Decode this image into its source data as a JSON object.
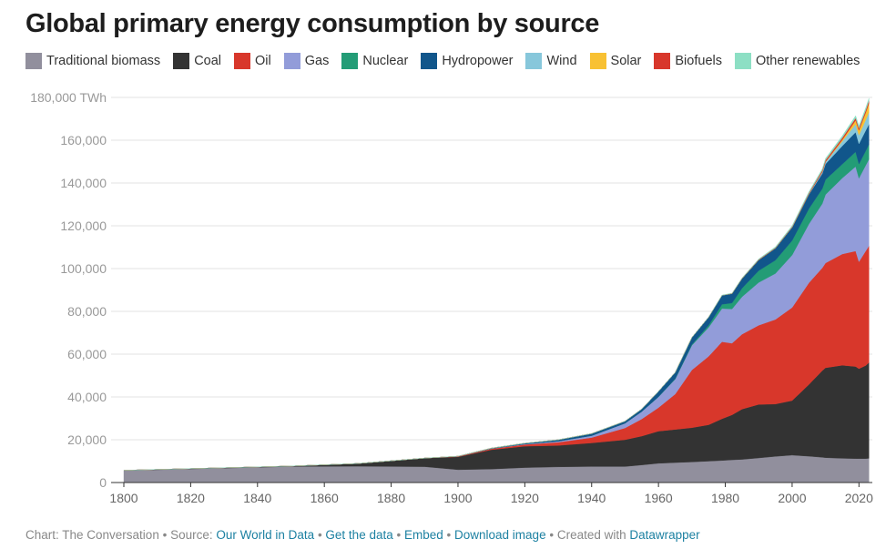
{
  "title": "Global primary energy consumption by source",
  "legend": [
    {
      "label": "Traditional biomass",
      "color": "#918f9d"
    },
    {
      "label": "Coal",
      "color": "#333333"
    },
    {
      "label": "Oil",
      "color": "#d8372b"
    },
    {
      "label": "Gas",
      "color": "#929cd9"
    },
    {
      "label": "Nuclear",
      "color": "#239c76"
    },
    {
      "label": "Hydropower",
      "color": "#11568b"
    },
    {
      "label": "Wind",
      "color": "#87c7db"
    },
    {
      "label": "Solar",
      "color": "#f8c133"
    },
    {
      "label": "Biofuels",
      "color": "#d8372b"
    },
    {
      "label": "Other renewables",
      "color": "#8ddfc4"
    }
  ],
  "chart_data": {
    "type": "area",
    "stacked": true,
    "title": "Global primary energy consumption by source",
    "ylabel_unit": "TWh",
    "ylim": [
      0,
      180000
    ],
    "xlim": [
      1800,
      2024
    ],
    "y_ticks": [
      0,
      20000,
      40000,
      60000,
      80000,
      100000,
      120000,
      140000,
      160000,
      180000
    ],
    "y_tick_labels": [
      "0",
      "20,000",
      "40,000",
      "60,000",
      "80,000",
      "100,000",
      "120,000",
      "140,000",
      "160,000",
      "180,000 TWh"
    ],
    "x_ticks": [
      1800,
      1820,
      1840,
      1860,
      1880,
      1900,
      1920,
      1940,
      1960,
      1980,
      2000,
      2020
    ],
    "x_tick_labels": [
      "1800",
      "1820",
      "1840",
      "1860",
      "1880",
      "1900",
      "1920",
      "1940",
      "1960",
      "1980",
      "2000",
      "2020"
    ],
    "x": [
      1800,
      1850,
      1870,
      1890,
      1900,
      1910,
      1920,
      1930,
      1940,
      1950,
      1955,
      1960,
      1965,
      1970,
      1975,
      1979,
      1982,
      1985,
      1990,
      1995,
      2000,
      2005,
      2009,
      2010,
      2015,
      2019,
      2020,
      2022,
      2023
    ],
    "series": [
      {
        "name": "Traditional biomass",
        "color": "#918f9d",
        "values": [
          5600,
          7500,
          7600,
          7400,
          6000,
          6300,
          7000,
          7300,
          7500,
          7500,
          8200,
          9000,
          9300,
          9600,
          10000,
          10300,
          10600,
          10800,
          11500,
          12200,
          12800,
          12300,
          11800,
          11600,
          11300,
          11200,
          11200,
          11200,
          11300
        ]
      },
      {
        "name": "Coal",
        "color": "#333333",
        "values": [
          100,
          200,
          1300,
          4000,
          6000,
          9000,
          10000,
          10000,
          11000,
          12500,
          13500,
          15000,
          15500,
          16000,
          17000,
          19500,
          21000,
          23500,
          25000,
          24500,
          25500,
          33500,
          40500,
          42000,
          43500,
          43000,
          42000,
          43500,
          44800
        ]
      },
      {
        "name": "Oil",
        "color": "#d8372b",
        "values": [
          0,
          0,
          0,
          0,
          200,
          500,
          800,
          1500,
          2500,
          5500,
          8000,
          11000,
          16500,
          27000,
          32000,
          36000,
          33500,
          35000,
          37000,
          39500,
          43500,
          47500,
          48000,
          49000,
          52000,
          54000,
          50000,
          53500,
          54500
        ]
      },
      {
        "name": "Gas",
        "color": "#929cd9",
        "values": [
          0,
          0,
          0,
          0,
          50,
          100,
          200,
          500,
          900,
          2200,
          3500,
          5000,
          7000,
          11500,
          13500,
          15500,
          16000,
          17500,
          20000,
          21500,
          24500,
          27500,
          30000,
          32000,
          35500,
          39500,
          39000,
          40000,
          40500
        ]
      },
      {
        "name": "Nuclear",
        "color": "#239c76",
        "values": [
          0,
          0,
          0,
          0,
          0,
          0,
          0,
          0,
          0,
          0,
          0,
          100,
          200,
          400,
          1000,
          2000,
          2800,
          4000,
          5500,
          6200,
          6800,
          7200,
          7000,
          7000,
          6500,
          6900,
          6700,
          6800,
          7000
        ]
      },
      {
        "name": "Hydropower",
        "color": "#11568b",
        "values": [
          0,
          0,
          0,
          0,
          50,
          200,
          400,
          700,
          1000,
          1000,
          1200,
          2500,
          3000,
          3300,
          3800,
          4200,
          4400,
          4500,
          5000,
          5600,
          6100,
          6600,
          7100,
          7300,
          8500,
          9200,
          9400,
          9500,
          9400
        ]
      },
      {
        "name": "Wind",
        "color": "#87c7db",
        "values": [
          0,
          0,
          0,
          0,
          0,
          0,
          0,
          0,
          0,
          0,
          0,
          0,
          0,
          0,
          0,
          0,
          0,
          0,
          10,
          20,
          80,
          250,
          700,
          900,
          2200,
          3700,
          4100,
          5000,
          5500
        ]
      },
      {
        "name": "Solar",
        "color": "#f8c133",
        "values": [
          0,
          0,
          0,
          0,
          0,
          0,
          0,
          0,
          0,
          0,
          0,
          0,
          0,
          0,
          0,
          0,
          0,
          0,
          0,
          0,
          0,
          20,
          60,
          80,
          650,
          1800,
          2200,
          3300,
          4200
        ]
      },
      {
        "name": "Biofuels",
        "color": "#d8372b",
        "values": [
          0,
          0,
          0,
          0,
          0,
          0,
          0,
          0,
          0,
          0,
          0,
          0,
          0,
          0,
          0,
          0,
          100,
          150,
          200,
          230,
          270,
          400,
          750,
          800,
          950,
          1100,
          1050,
          1150,
          1200
        ]
      },
      {
        "name": "Other renewables",
        "color": "#8ddfc4",
        "values": [
          0,
          0,
          0,
          0,
          0,
          0,
          0,
          0,
          0,
          0,
          0,
          0,
          0,
          0,
          0,
          100,
          150,
          200,
          300,
          400,
          500,
          600,
          700,
          800,
          950,
          1050,
          1100,
          1150,
          1200
        ]
      }
    ]
  },
  "footer": {
    "chart_by": "Chart: The Conversation",
    "source_label": "Source:",
    "source_link": "Our World in Data",
    "get_data": "Get the data",
    "embed": "Embed",
    "download": "Download image",
    "created_with": "Created with",
    "datawrapper": "Datawrapper"
  }
}
